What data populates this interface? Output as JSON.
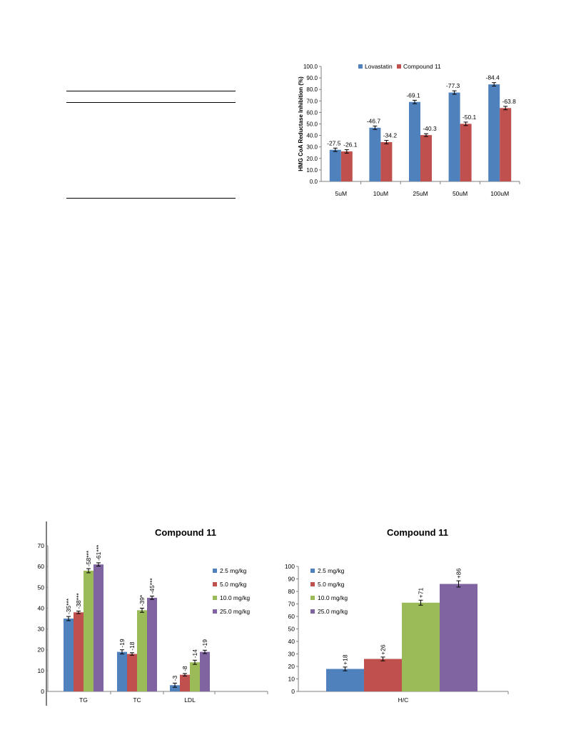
{
  "colors": {
    "lovastatin": "#4f81bd",
    "compound11": "#c0504d",
    "d25": "#4f81bd",
    "d50": "#c0504d",
    "d100": "#9bbb59",
    "d250": "#8064a2",
    "axis": "#7f7f7f",
    "grid": "#d9d9d9"
  },
  "chart_data": [
    {
      "type": "bar",
      "title": "",
      "xlabel": "",
      "ylabel": "HMG CoA Reductase Inhibition (%)",
      "ylim": [
        0,
        100
      ],
      "yticks": [
        "0.0",
        "10.0",
        "20.0",
        "30.0",
        "40.0",
        "50.0",
        "60.0",
        "70.0",
        "80.0",
        "90.0",
        "100.0"
      ],
      "grid": false,
      "legend": "top-left",
      "categories": [
        "5uM",
        "10uM",
        "25uM",
        "50uM",
        "100uM"
      ],
      "series": [
        {
          "name": "Lovastatin",
          "values": [
            27.5,
            46.7,
            69.1,
            77.3,
            84.4
          ],
          "labels": [
            "-27.5",
            "-46.7",
            "-69.1",
            "-77.3",
            "-84.4"
          ],
          "errors": [
            1.5,
            1.5,
            1.5,
            1.5,
            1.5
          ]
        },
        {
          "name": "Compound 11",
          "values": [
            26.1,
            34.2,
            40.3,
            50.1,
            63.8
          ],
          "labels": [
            "-26.1",
            "-34.2",
            "-40.3",
            "-50.1",
            "-63.8"
          ],
          "errors": [
            1.5,
            1.5,
            1.2,
            1.5,
            1.5
          ]
        }
      ]
    },
    {
      "type": "bar",
      "title": "Compound 11",
      "xlabel": "",
      "ylabel": "",
      "ylim": [
        0,
        70
      ],
      "yticks": [
        "0",
        "10",
        "20",
        "30",
        "40",
        "50",
        "60",
        "70"
      ],
      "grid": false,
      "legend": "right",
      "categories": [
        "TG",
        "TC",
        "LDL"
      ],
      "series": [
        {
          "name": "2.5 mg/kg",
          "values": [
            35,
            19,
            3
          ],
          "labels": [
            "-35***",
            "-19",
            "-3"
          ],
          "errors": [
            1,
            1,
            1
          ]
        },
        {
          "name": "5.0 mg/kg",
          "values": [
            38,
            18,
            8
          ],
          "labels": [
            "-38***",
            "-18",
            "-8"
          ],
          "errors": [
            0.6,
            0.6,
            0.6
          ]
        },
        {
          "name": "10.0 mg/kg",
          "values": [
            58,
            39,
            14
          ],
          "labels": [
            "-58***",
            "-39*",
            "-14"
          ],
          "errors": [
            1,
            1,
            1
          ]
        },
        {
          "name": "25.0 mg/kg",
          "values": [
            61,
            45,
            19
          ],
          "labels": [
            "-61***",
            "-45***",
            "-19"
          ],
          "errors": [
            0.8,
            0.8,
            0.8
          ]
        }
      ]
    },
    {
      "type": "bar",
      "title": "Compound 11",
      "xlabel": "",
      "ylabel": "",
      "ylim": [
        0,
        100
      ],
      "yticks": [
        "0",
        "10",
        "20",
        "30",
        "40",
        "50",
        "60",
        "70",
        "80",
        "90",
        "100"
      ],
      "grid": false,
      "legend": "top-left",
      "categories": [
        "H/C"
      ],
      "series": [
        {
          "name": "2.5 mg/kg",
          "values": [
            18
          ],
          "labels": [
            "+18"
          ],
          "errors": [
            1.5
          ]
        },
        {
          "name": "5.0 mg/kg",
          "values": [
            26
          ],
          "labels": [
            "+26"
          ],
          "errors": [
            1.5
          ]
        },
        {
          "name": "10.0 mg/kg",
          "values": [
            71
          ],
          "labels": [
            "+71"
          ],
          "errors": [
            2
          ]
        },
        {
          "name": "25.0 mg/kg",
          "values": [
            86
          ],
          "labels": [
            "+86"
          ],
          "errors": [
            2.5
          ]
        }
      ]
    }
  ]
}
